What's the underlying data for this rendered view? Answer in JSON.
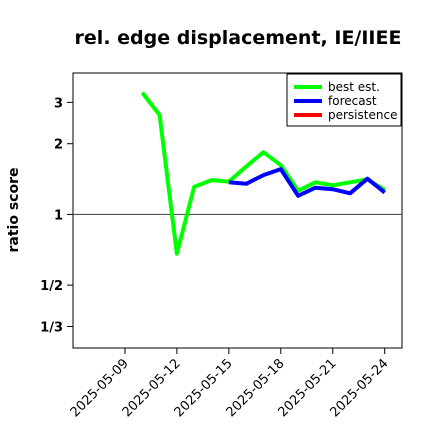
{
  "chart_data": {
    "type": "line",
    "title": "rel. edge displacement, IE/IIEE",
    "xlabel": "",
    "ylabel": "ratio score",
    "y_scale": "log",
    "ylim": [
      0.27,
      4.0
    ],
    "xlim": [
      "2025-05-06",
      "2025-05-25"
    ],
    "y_ticks": [
      {
        "value": 3,
        "label": "3"
      },
      {
        "value": 2,
        "label": "2"
      },
      {
        "value": 1,
        "label": "1"
      },
      {
        "value": 0.5,
        "label": "1/2"
      },
      {
        "value": 0.3333,
        "label": "1/3"
      }
    ],
    "x_ticks": [
      {
        "date": "2025-05-09",
        "label": "2025-05-09",
        "color": "#000000"
      },
      {
        "date": "2025-05-12",
        "label": "2025-05-12",
        "color": "#000000"
      },
      {
        "date": "2025-05-15",
        "label": "2025-05-15",
        "color": "#008000"
      },
      {
        "date": "2025-05-18",
        "label": "2025-05-18",
        "color": "#000000"
      },
      {
        "date": "2025-05-21",
        "label": "2025-05-21",
        "color": "#000000"
      },
      {
        "date": "2025-05-24",
        "label": "2025-05-24",
        "color": "#000000"
      }
    ],
    "reference_line": 1,
    "legend_position": "top-right",
    "series": [
      {
        "name": "best est.",
        "color": "#00ff00",
        "points": [
          {
            "x": "2025-05-10",
            "y": 3.3
          },
          {
            "x": "2025-05-11",
            "y": 2.65
          },
          {
            "x": "2025-05-12",
            "y": 0.68
          },
          {
            "x": "2025-05-13",
            "y": 1.31
          },
          {
            "x": "2025-05-14",
            "y": 1.4
          },
          {
            "x": "2025-05-15",
            "y": 1.38
          },
          {
            "x": "2025-05-16",
            "y": 1.6
          },
          {
            "x": "2025-05-17",
            "y": 1.84
          },
          {
            "x": "2025-05-18",
            "y": 1.62
          },
          {
            "x": "2025-05-19",
            "y": 1.26
          },
          {
            "x": "2025-05-20",
            "y": 1.37
          },
          {
            "x": "2025-05-21",
            "y": 1.33
          },
          {
            "x": "2025-05-22",
            "y": 1.37
          },
          {
            "x": "2025-05-23",
            "y": 1.41
          },
          {
            "x": "2025-05-24",
            "y": 1.27
          }
        ]
      },
      {
        "name": "forecast",
        "color": "#0000ff",
        "points": [
          {
            "x": "2025-05-15",
            "y": 1.37
          },
          {
            "x": "2025-05-16",
            "y": 1.35
          },
          {
            "x": "2025-05-17",
            "y": 1.47
          },
          {
            "x": "2025-05-18",
            "y": 1.56
          },
          {
            "x": "2025-05-19",
            "y": 1.2
          },
          {
            "x": "2025-05-20",
            "y": 1.3
          },
          {
            "x": "2025-05-21",
            "y": 1.28
          },
          {
            "x": "2025-05-22",
            "y": 1.23
          },
          {
            "x": "2025-05-23",
            "y": 1.42
          },
          {
            "x": "2025-05-24",
            "y": 1.24
          }
        ]
      },
      {
        "name": "persistence",
        "color": "#ff0000",
        "points": []
      }
    ]
  }
}
